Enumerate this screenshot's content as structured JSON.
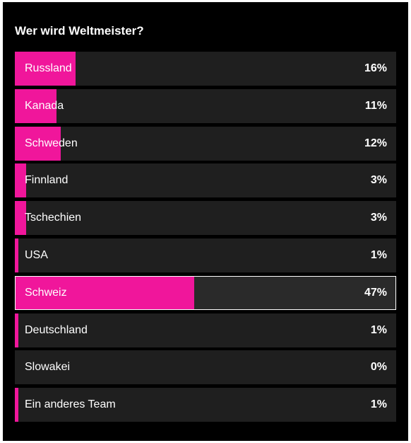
{
  "poll": {
    "question": "Wer wird Weltmeister?",
    "accent_color": "#f0169b",
    "options": [
      {
        "label": "Russland",
        "percent_text": "16%",
        "value": 16,
        "selected": false
      },
      {
        "label": "Kanada",
        "percent_text": "11%",
        "value": 11,
        "selected": false
      },
      {
        "label": "Schweden",
        "percent_text": "12%",
        "value": 12,
        "selected": false
      },
      {
        "label": "Finnland",
        "percent_text": "3%",
        "value": 3,
        "selected": false
      },
      {
        "label": "Tschechien",
        "percent_text": "3%",
        "value": 3,
        "selected": false
      },
      {
        "label": "USA",
        "percent_text": "1%",
        "value": 1,
        "selected": false
      },
      {
        "label": "Schweiz",
        "percent_text": "47%",
        "value": 47,
        "selected": true
      },
      {
        "label": "Deutschland",
        "percent_text": "1%",
        "value": 1,
        "selected": false
      },
      {
        "label": "Slowakei",
        "percent_text": "0%",
        "value": 0,
        "selected": false
      },
      {
        "label": "Ein anderes Team",
        "percent_text": "1%",
        "value": 1,
        "selected": false
      }
    ]
  }
}
